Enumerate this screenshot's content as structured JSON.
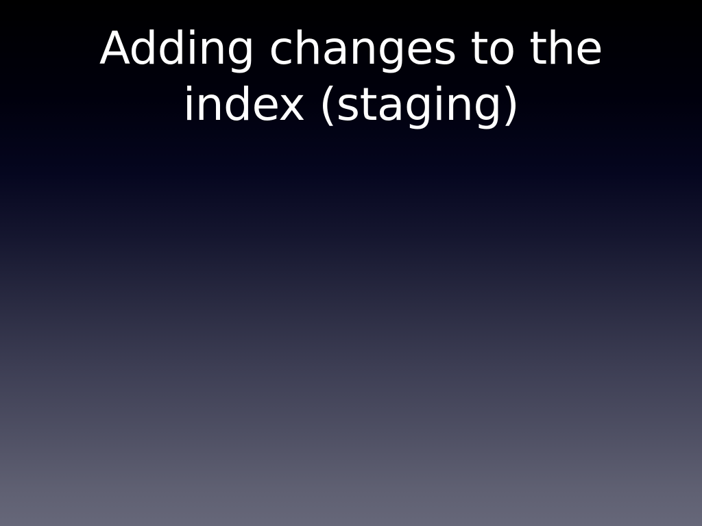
{
  "slide": {
    "title_lines": [
      "Adding changes to the",
      "index (staging)"
    ],
    "colors": {
      "background_top": "#000000",
      "background_bottom": "#666779",
      "title_text": "#ffffff"
    }
  }
}
